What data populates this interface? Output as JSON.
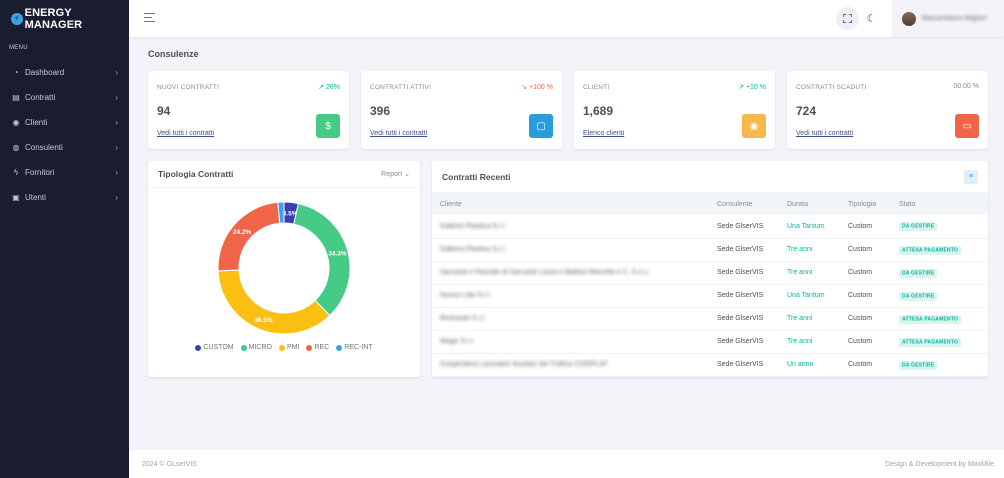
{
  "brand": {
    "title": "ENERGY MANAGER"
  },
  "sidebar": {
    "menu_title": "MENU",
    "items": [
      {
        "label": "Dashboard",
        "icon": "dashboard-icon"
      },
      {
        "label": "Contratti",
        "icon": "file-icon"
      },
      {
        "label": "Clienti",
        "icon": "user-icon"
      },
      {
        "label": "Consulenti",
        "icon": "globe-icon"
      },
      {
        "label": "Fornitori",
        "icon": "bolt-icon"
      },
      {
        "label": "Utenti",
        "icon": "users-icon"
      }
    ]
  },
  "topbar": {
    "user_name": "Massimiliano Migliori"
  },
  "page": {
    "title": "Consulenze"
  },
  "stats": [
    {
      "label": "NUOVI CONTRATTI",
      "change": "↗ 26%",
      "trend": "up",
      "value": "94",
      "link": "Vedi tutti i contratti",
      "icon": "dollar-circle-icon",
      "color": "#45cb85"
    },
    {
      "label": "CONTRATTI ATTIVI",
      "change": "↘ +100 %",
      "trend": "down",
      "value": "396",
      "link": "Vedi tutti i contratti",
      "icon": "shopping-bag-icon",
      "color": "#299cdb"
    },
    {
      "label": "CLIENTI",
      "change": "↗ +10 %",
      "trend": "up",
      "value": "1,689",
      "link": "Elenco clienti",
      "icon": "user-circle-icon",
      "color": "#f7b84b"
    },
    {
      "label": "CONTRATTI SCADUTI",
      "change": "00.00 %",
      "trend": "neutral",
      "value": "724",
      "link": "Vedi tutti i contratti",
      "icon": "wallet-icon",
      "color": "#f06548"
    }
  ],
  "tipologia": {
    "title": "Tipologia Contratti",
    "report_label": "Report ⌄"
  },
  "chart_data": {
    "type": "pie",
    "title": "Tipologia Contratti",
    "categories": [
      "CUSTOM",
      "MICRO",
      "PMI",
      "REC",
      "REC-INT"
    ],
    "values": [
      3.5,
      34.3,
      36.5,
      24.2,
      1.5
    ],
    "labels": [
      "3.5%",
      "34.3%",
      "36.5%",
      "24.2%",
      ""
    ],
    "colors": [
      "#3b3fb6",
      "#45cb85",
      "#fbbf12",
      "#f06548",
      "#3aa2ec"
    ],
    "legend": "bottom"
  },
  "recenti": {
    "title": "Contratti Recenti",
    "columns": [
      "Cliente",
      "Consulente",
      "Durata",
      "Tipologia",
      "Stato"
    ],
    "rows": [
      {
        "cliente": "Galleno Plastica S.r.l.",
        "consulente": "Sede GlserVIS",
        "durata": "Una Tantum",
        "tipologia": "Custom",
        "stato": "DA GESTIRE"
      },
      {
        "cliente": "Galleno Plastica S.r.l.",
        "consulente": "Sede GlserVIS",
        "durata": "Tre anni",
        "tipologia": "Custom",
        "stato": "ATTESA PAGAMENTO"
      },
      {
        "cliente": "Saccardi e Parziale di Saccardi Laura e Mattioli Marcello e C. S.n.c.",
        "consulente": "Sede GlserVIS",
        "durata": "Tre anni",
        "tipologia": "Custom",
        "stato": "DA GESTIRE"
      },
      {
        "cliente": "Nuovo Lido S.r.l.",
        "consulente": "Sede GlserVIS",
        "durata": "Una Tantum",
        "tipologia": "Custom",
        "stato": "DA GESTIRE"
      },
      {
        "cliente": "Riverauto S.r.l.",
        "consulente": "Sede GlserVIS",
        "durata": "Tre anni",
        "tipologia": "Custom",
        "stato": "ATTESA PAGAMENTO"
      },
      {
        "cliente": "Magic S.r.l.",
        "consulente": "Sede GlserVIS",
        "durata": "Tre anni",
        "tipologia": "Custom",
        "stato": "ATTESA PAGAMENTO"
      },
      {
        "cliente": "Cooperativa Lavoratori Ausiliari del Traffico COOPLAT",
        "consulente": "Sede GlserVIS",
        "durata": "Un anno",
        "tipologia": "Custom",
        "stato": "DA GESTIRE"
      }
    ]
  },
  "footer": {
    "left": "2024 © GLserVIS",
    "right": "Design & Development by MaxMile"
  }
}
